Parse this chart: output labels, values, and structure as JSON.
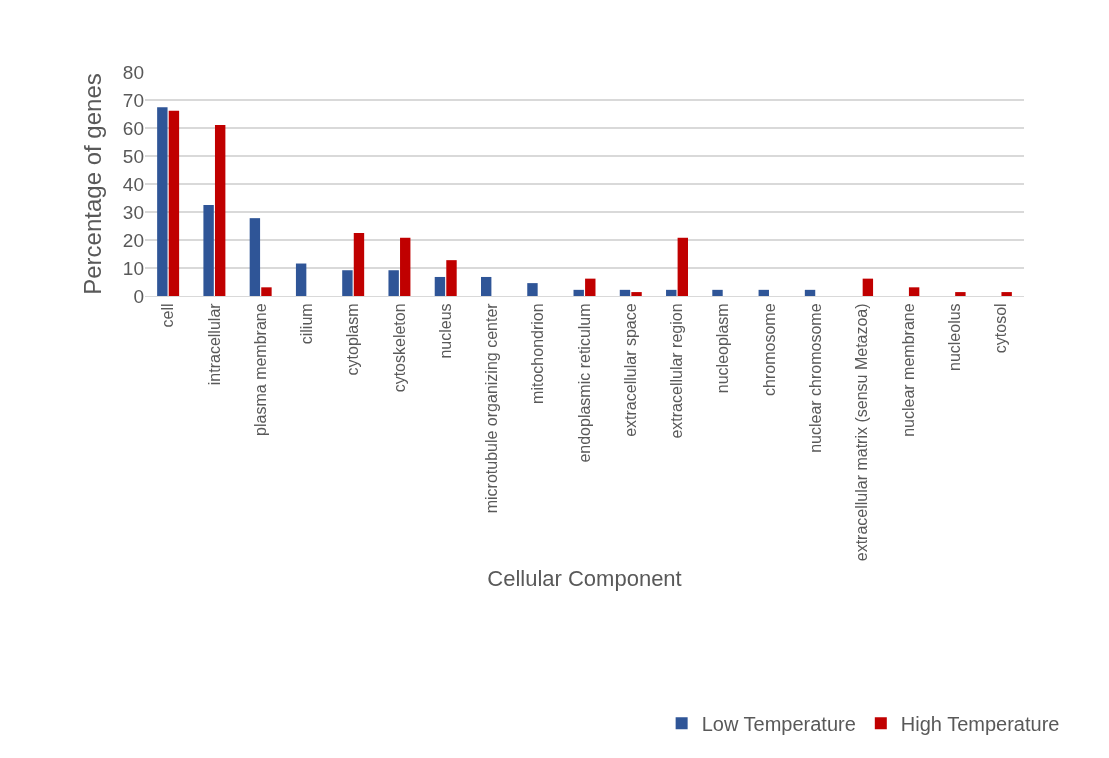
{
  "chart_data": {
    "type": "bar",
    "xlabel": "Cellular Component",
    "ylabel": "Percentage of genes",
    "categories": [
      "cell",
      "intracellular",
      "plasma membrane",
      "cilium",
      "cytoplasm",
      "cytoskeleton",
      "nucleus",
      "microtubule organizing center",
      "mitochondrion",
      "endoplasmic reticulum",
      "extracellular space",
      "extracellular region",
      "nucleoplasm",
      "chromosome",
      "nuclear chromosome",
      "extracellular matrix (sensu Metazoa)",
      "nuclear membrane",
      "nucleolus",
      "cytosol"
    ],
    "series": [
      {
        "name": "Low Temperature",
        "color": "#2f5597",
        "values": [
          67.4,
          32.5,
          27.8,
          11.6,
          9.2,
          9.2,
          6.8,
          6.8,
          4.6,
          2.2,
          2.2,
          2.2,
          2.2,
          2.2,
          2.2,
          null,
          null,
          null,
          null
        ]
      },
      {
        "name": "High Temperature",
        "color": "#c00000",
        "values": [
          66.2,
          61.1,
          3.1,
          null,
          22.5,
          20.8,
          12.8,
          null,
          null,
          6.2,
          1.4,
          20.8,
          null,
          null,
          null,
          6.2,
          3.1,
          1.4,
          1.4
        ]
      }
    ],
    "ylim": [
      0,
      80
    ],
    "yticks": [
      0,
      10,
      20,
      30,
      40,
      50,
      60,
      70,
      80
    ],
    "grid": "y",
    "legend": "bottom right"
  }
}
